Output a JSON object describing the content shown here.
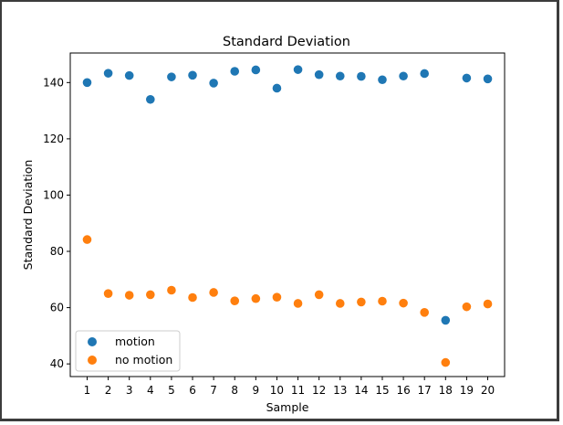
{
  "chart_data": {
    "type": "scatter",
    "title": "Standard Deviation",
    "xlabel": "Sample",
    "ylabel": "Standard Deviation",
    "x": [
      1,
      2,
      3,
      4,
      5,
      6,
      7,
      8,
      9,
      10,
      11,
      12,
      13,
      14,
      15,
      16,
      17,
      18,
      19,
      20
    ],
    "xlim": [
      0.2,
      20.8
    ],
    "ylim": [
      35.5,
      150.5
    ],
    "yticks": [
      40,
      60,
      80,
      100,
      120,
      140
    ],
    "grid": false,
    "legend_position": "lower-left",
    "series": [
      {
        "name": "motion",
        "color": "#1f77b4",
        "values": [
          140.0,
          143.3,
          142.5,
          134.0,
          142.0,
          142.6,
          139.8,
          144.0,
          144.5,
          138.0,
          144.6,
          142.8,
          142.3,
          142.2,
          141.0,
          142.3,
          143.2,
          55.5,
          141.6,
          141.3
        ]
      },
      {
        "name": "no motion",
        "color": "#ff7f0e",
        "values": [
          84.2,
          65.0,
          64.4,
          64.6,
          66.2,
          63.6,
          65.4,
          62.4,
          63.2,
          63.7,
          61.5,
          64.6,
          61.5,
          62.0,
          62.3,
          61.6,
          58.3,
          40.5,
          60.3,
          61.3
        ]
      }
    ]
  }
}
